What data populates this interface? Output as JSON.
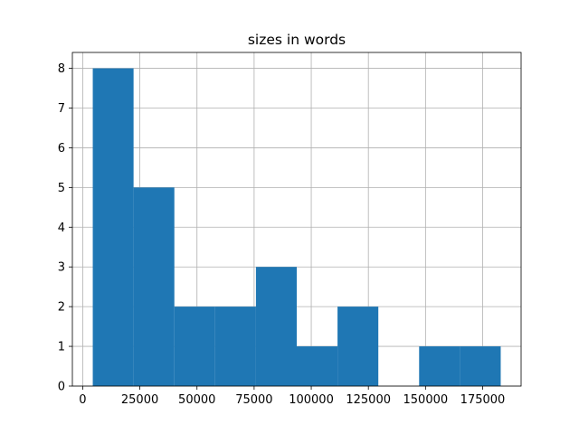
{
  "chart_data": {
    "type": "histogram",
    "title": "sizes in words",
    "bins": [
      4400,
      22250,
      40100,
      57950,
      75800,
      93650,
      111500,
      129350,
      147200,
      165050,
      182900
    ],
    "values": [
      8,
      5,
      2,
      2,
      3,
      1,
      2,
      0,
      1,
      1
    ],
    "color": "#1f77b4",
    "xlim": [
      -4525,
      191825
    ],
    "xticks": [
      0,
      25000,
      50000,
      75000,
      100000,
      125000,
      150000,
      175000
    ],
    "ylim": [
      0,
      8.4
    ],
    "yticks": [
      0,
      1,
      2,
      3,
      4,
      5,
      6,
      7,
      8
    ],
    "grid": true
  }
}
